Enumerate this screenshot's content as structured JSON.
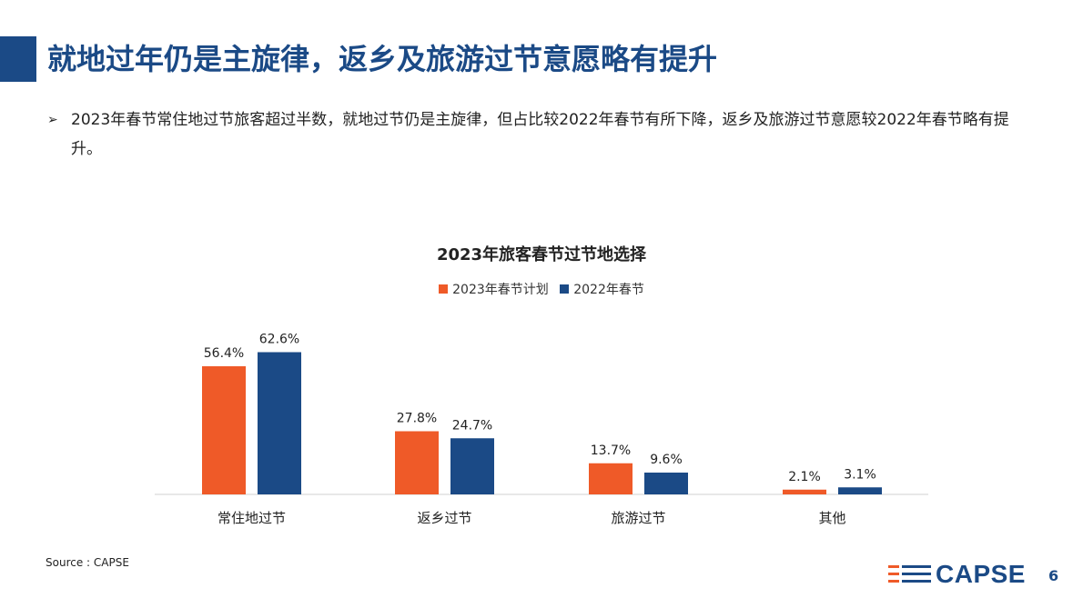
{
  "slide": {
    "title": "就地过年仍是主旋律，返乡及旅游过节意愿略有提升",
    "bullet": "2023年春节常住地过节旅客超过半数，就地过节仍是主旋律，但占比较2022年春节有所下降，返乡及旅游过节意愿较2022年春节略有提升。",
    "bullet_marker": "➢",
    "source": "Source : CAPSE",
    "logo_text": "CAPSE",
    "page_number": "6"
  },
  "chart_data": {
    "type": "bar",
    "title": "2023年旅客春节过节地选择",
    "categories": [
      "常住地过节",
      "返乡过节",
      "旅游过节",
      "其他"
    ],
    "series": [
      {
        "name": "2023年春节计划",
        "values": [
          56.4,
          27.8,
          13.7,
          2.1
        ],
        "color": "#ef5a28"
      },
      {
        "name": "2022年春节",
        "values": [
          62.6,
          24.7,
          9.6,
          3.1
        ],
        "color": "#1b4a86"
      }
    ],
    "value_suffix": "%",
    "ylim": [
      0,
      70
    ],
    "legend_position": "top-center",
    "grid": false
  }
}
